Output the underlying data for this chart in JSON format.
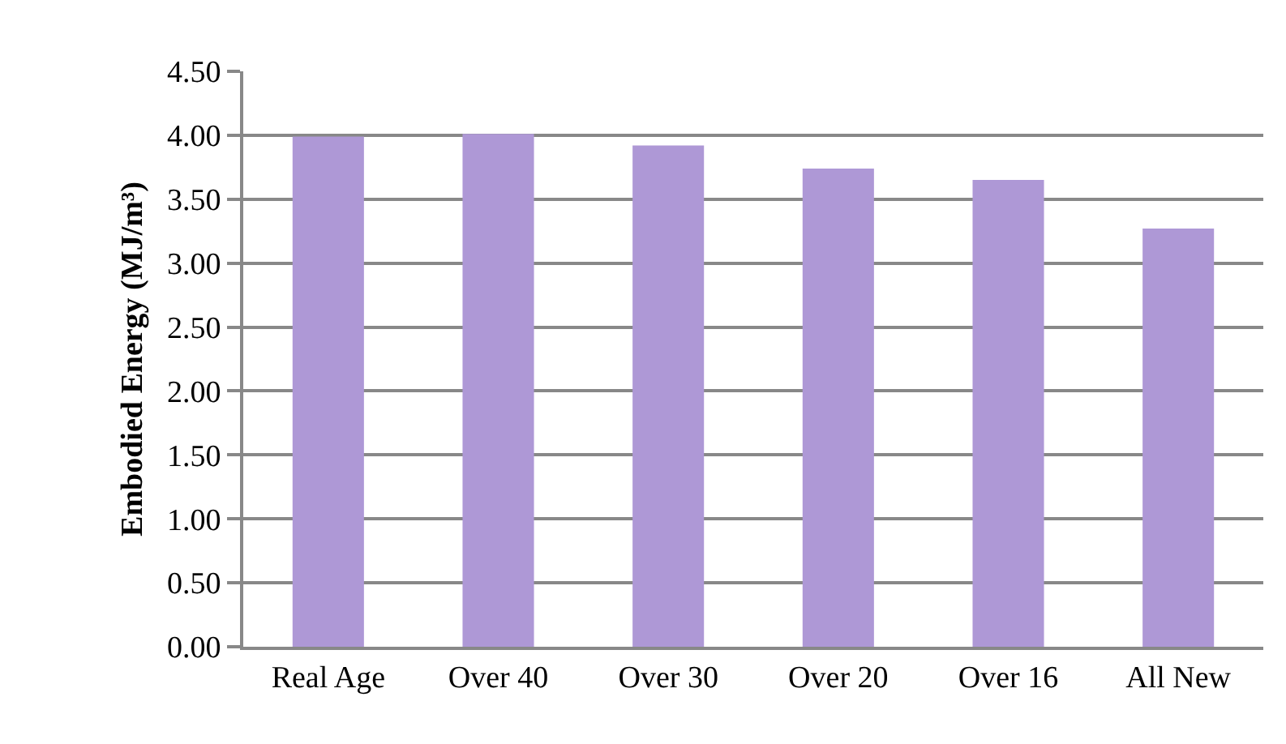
{
  "chart_data": {
    "type": "bar",
    "ylabel": "Embodied Energy (MJ/m³)",
    "categories": [
      "Real Age",
      "Over 40",
      "Over 30",
      "Over 20",
      "Over 16",
      "All New"
    ],
    "values": [
      3.99,
      4.01,
      3.92,
      3.74,
      3.65,
      3.27
    ],
    "color": "#ae98d6",
    "ylim": [
      0,
      4.5
    ],
    "yticks": [
      {
        "value": 0,
        "label": "0.00"
      },
      {
        "value": 0.5,
        "label": "0.50"
      },
      {
        "value": 1,
        "label": "1.00"
      },
      {
        "value": 1.5,
        "label": "1.50"
      },
      {
        "value": 2,
        "label": "2.00"
      },
      {
        "value": 2.5,
        "label": "2.50"
      },
      {
        "value": 3,
        "label": "3.00"
      },
      {
        "value": 3.5,
        "label": "3.50"
      },
      {
        "value": 4,
        "label": "4.00"
      },
      {
        "value": 4.5,
        "label": "4.50"
      }
    ],
    "grid": "y",
    "legend": false
  }
}
